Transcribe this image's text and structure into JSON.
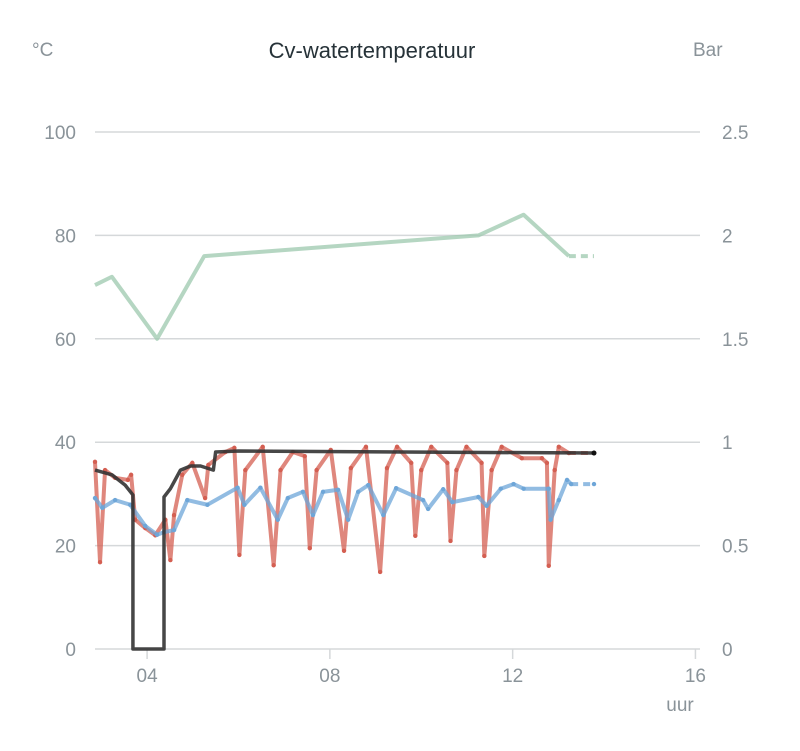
{
  "chart_data": {
    "type": "line",
    "title": "Cv-watertemperatuur",
    "ylabel_left": "°C",
    "ylabel_right": "Bar",
    "xlabel": "uur",
    "xlim": [
      2.86,
      16.1
    ],
    "ylim_left": [
      0,
      100
    ],
    "ylim_right": [
      0,
      2.5
    ],
    "x_ticks": [
      {
        "v": 4,
        "label": "04"
      },
      {
        "v": 8,
        "label": "08"
      },
      {
        "v": 12,
        "label": "12"
      },
      {
        "v": 16,
        "label": "16"
      }
    ],
    "y_ticks_left": [
      {
        "v": 0,
        "label": "0"
      },
      {
        "v": 20,
        "label": "20"
      },
      {
        "v": 40,
        "label": "40"
      },
      {
        "v": 60,
        "label": "60"
      },
      {
        "v": 80,
        "label": "80"
      },
      {
        "v": 100,
        "label": "100"
      }
    ],
    "y_ticks_right": [
      {
        "v": 0,
        "label": "0"
      },
      {
        "v": 0.5,
        "label": "0.5"
      },
      {
        "v": 1,
        "label": "1"
      },
      {
        "v": 1.5,
        "label": "1.5"
      },
      {
        "v": 2,
        "label": "2"
      },
      {
        "v": 2.5,
        "label": "2.5"
      }
    ],
    "grid": true,
    "series": [
      {
        "axis": "right",
        "color": "#9cc8ad",
        "markers": false,
        "dashed_tail": true,
        "points": [
          [
            2.86,
            1.76
          ],
          [
            3.23,
            1.8
          ],
          [
            4.22,
            1.5
          ],
          [
            5.25,
            1.9
          ],
          [
            11.25,
            2.0
          ],
          [
            12.24,
            2.1
          ],
          [
            13.23,
            1.9
          ],
          [
            13.78,
            1.9
          ]
        ]
      },
      {
        "axis": "left",
        "color": "#d45f52",
        "markers": true,
        "dashed_tail": true,
        "points": [
          [
            2.86,
            36.2
          ],
          [
            2.97,
            16.8
          ],
          [
            3.08,
            34.6
          ],
          [
            3.3,
            33.1
          ],
          [
            3.58,
            32.7
          ],
          [
            3.65,
            33.7
          ],
          [
            3.74,
            25
          ],
          [
            3.96,
            23.4
          ],
          [
            4.18,
            22
          ],
          [
            4.4,
            25
          ],
          [
            4.51,
            17.2
          ],
          [
            4.59,
            25.9
          ],
          [
            4.77,
            33.7
          ],
          [
            4.99,
            36
          ],
          [
            5.27,
            29.2
          ],
          [
            5.34,
            35.6
          ],
          [
            5.71,
            38.1
          ],
          [
            5.91,
            38.9
          ],
          [
            6.02,
            18.2
          ],
          [
            6.15,
            34.6
          ],
          [
            6.53,
            39.1
          ],
          [
            6.77,
            16.2
          ],
          [
            6.92,
            34.6
          ],
          [
            7.19,
            38.1
          ],
          [
            7.45,
            37.3
          ],
          [
            7.56,
            19.5
          ],
          [
            7.71,
            34.6
          ],
          [
            8.02,
            38.5
          ],
          [
            8.31,
            19.0
          ],
          [
            8.46,
            35
          ],
          [
            8.79,
            39.1
          ],
          [
            9.1,
            14.9
          ],
          [
            9.25,
            35
          ],
          [
            9.47,
            39.1
          ],
          [
            9.78,
            36
          ],
          [
            9.87,
            21.9
          ],
          [
            10.0,
            34.6
          ],
          [
            10.22,
            39.1
          ],
          [
            10.57,
            36
          ],
          [
            10.64,
            20.9
          ],
          [
            10.77,
            34.6
          ],
          [
            10.99,
            39.1
          ],
          [
            11.32,
            36
          ],
          [
            11.38,
            18
          ],
          [
            11.54,
            34.6
          ],
          [
            11.76,
            39.1
          ],
          [
            12.2,
            36.9
          ],
          [
            12.64,
            36.9
          ],
          [
            12.75,
            36
          ],
          [
            12.79,
            16.1
          ],
          [
            12.92,
            34.6
          ],
          [
            13.01,
            39.1
          ],
          [
            13.23,
            37.9
          ],
          [
            13.78,
            37.9
          ]
        ]
      },
      {
        "axis": "left",
        "color": "#6ea6d8",
        "markers": true,
        "dashed_tail": true,
        "points": [
          [
            2.86,
            29.2
          ],
          [
            3.02,
            27.3
          ],
          [
            3.3,
            28.8
          ],
          [
            3.63,
            27.9
          ],
          [
            3.96,
            23.8
          ],
          [
            4.22,
            22.1
          ],
          [
            4.37,
            22.6
          ],
          [
            4.59,
            23
          ],
          [
            4.88,
            28.8
          ],
          [
            5.32,
            27.9
          ],
          [
            5.98,
            31.2
          ],
          [
            6.13,
            27.9
          ],
          [
            6.48,
            31.2
          ],
          [
            6.86,
            25
          ],
          [
            7.08,
            29.2
          ],
          [
            7.41,
            30.4
          ],
          [
            7.63,
            25.9
          ],
          [
            7.85,
            30.4
          ],
          [
            8.18,
            30.8
          ],
          [
            8.4,
            25
          ],
          [
            8.62,
            30.4
          ],
          [
            8.84,
            31.7
          ],
          [
            9.17,
            25.9
          ],
          [
            9.45,
            31.1
          ],
          [
            10.04,
            28.8
          ],
          [
            10.15,
            27.1
          ],
          [
            10.48,
            30.9
          ],
          [
            10.68,
            28.4
          ],
          [
            11.25,
            29.4
          ],
          [
            11.43,
            27.7
          ],
          [
            11.74,
            31.0
          ],
          [
            12.02,
            31.9
          ],
          [
            12.24,
            31
          ],
          [
            12.79,
            31
          ],
          [
            12.83,
            25
          ],
          [
            13.01,
            28.8
          ],
          [
            13.19,
            32.7
          ],
          [
            13.28,
            31.9
          ],
          [
            13.78,
            31.9
          ]
        ]
      },
      {
        "axis": "left",
        "color": "#333333",
        "markers": false,
        "dashed_tail": false,
        "points": [
          [
            2.86,
            34.6
          ],
          [
            3.23,
            33.7
          ],
          [
            3.52,
            31.7
          ],
          [
            3.69,
            29.8
          ],
          [
            3.69,
            0
          ],
          [
            4.37,
            0
          ],
          [
            4.37,
            29.4
          ],
          [
            4.51,
            31
          ],
          [
            4.73,
            34.6
          ],
          [
            4.95,
            35.4
          ],
          [
            5.17,
            35.4
          ],
          [
            5.45,
            34.6
          ],
          [
            5.5,
            38.1
          ],
          [
            6.0,
            38.3
          ],
          [
            13.78,
            37.9
          ]
        ]
      }
    ]
  }
}
